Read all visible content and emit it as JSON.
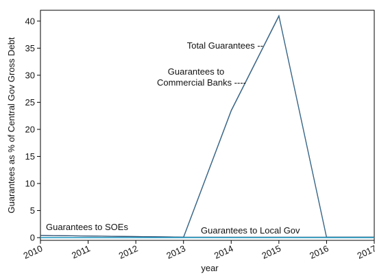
{
  "chart_data": {
    "type": "line",
    "title": "",
    "xlabel": "year",
    "ylabel": "Guarantees as % of Central Gov Gross Debt",
    "x": [
      2010,
      2011,
      2012,
      2013,
      2014,
      2015,
      2016,
      2017
    ],
    "x_tick_labels": [
      "2010",
      "2011",
      "2012",
      "2013",
      "2014",
      "2015",
      "2016",
      "2017"
    ],
    "y_ticks": [
      0,
      5,
      10,
      15,
      20,
      25,
      30,
      35,
      40
    ],
    "xlim": [
      2010,
      2017
    ],
    "ylim": [
      -0.5,
      42
    ],
    "grid": false,
    "legend": "none",
    "series": [
      {
        "name": "Total Guarantees",
        "values": [
          0.4,
          0.3,
          0.2,
          0.1,
          23.5,
          41.0,
          0.1,
          0.1
        ],
        "color": "#2c4b6e"
      },
      {
        "name": "Guarantees to Commercial Banks",
        "values": [
          0.0,
          0.0,
          0.0,
          0.0,
          23.4,
          40.9,
          0.0,
          0.0
        ],
        "color": "#3a6a8a"
      },
      {
        "name": "Guarantees to SOEs",
        "values": [
          0.4,
          0.3,
          0.2,
          0.1,
          0.1,
          0.1,
          0.1,
          0.1
        ],
        "color": "#2f4f6f"
      },
      {
        "name": "Guarantees to Local Gov",
        "values": [
          0.0,
          0.0,
          0.0,
          0.0,
          0.0,
          0.0,
          0.0,
          0.0
        ],
        "color": "#29a3c9"
      }
    ],
    "annotations": [
      {
        "text": "Total Guarantees --"
      },
      {
        "text": "Guarantees to"
      },
      {
        "text": "Commercial Banks ----"
      },
      {
        "text": "Guarantees to SOEs"
      },
      {
        "text": "Guarantees to Local Gov"
      }
    ]
  }
}
